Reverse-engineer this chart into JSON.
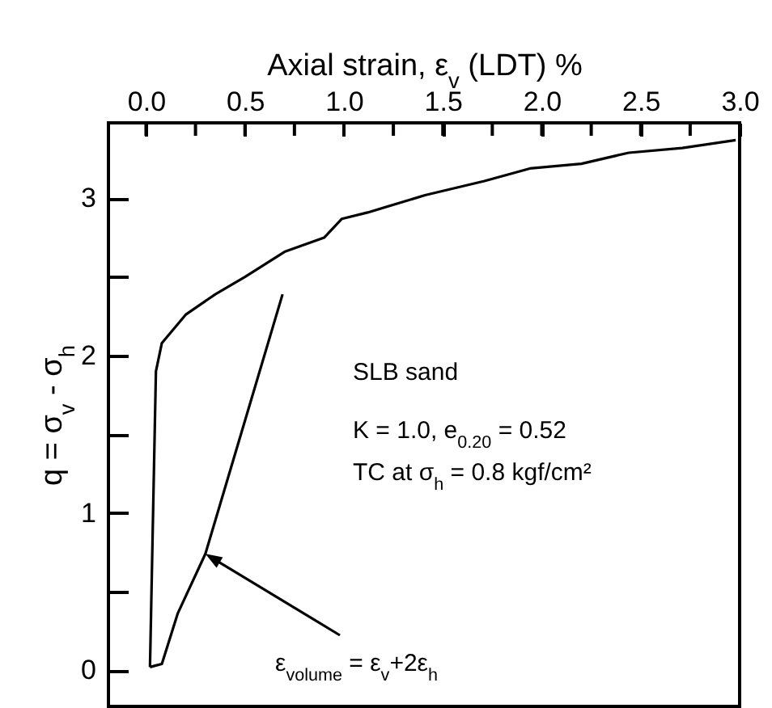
{
  "chart_data": {
    "type": "line",
    "xlabel": "Axial strain,  ε$_{v}$ (LDT) %",
    "ylabel": "q = σ$_{v}$ - σ$_{h}$",
    "series": [
      {
        "color": "#000000",
        "x": [
          0.02,
          0.05,
          0.08,
          0.2,
          0.35,
          0.5,
          0.7,
          0.9,
          0.99,
          1.12,
          1.41,
          1.71,
          1.94,
          2.2,
          2.44,
          2.71,
          2.98
        ],
        "values": [
          0.02,
          1.9,
          2.08,
          2.26,
          2.39,
          2.5,
          2.66,
          2.75,
          2.87,
          2.91,
          3.02,
          3.11,
          3.19,
          3.22,
          3.29,
          3.32,
          3.37
        ]
      },
      {
        "color": "#000000",
        "x": [
          0.02,
          0.05,
          0.08,
          0.16,
          0.3,
          0.69
        ],
        "values": [
          0.02,
          0.03,
          0.04,
          0.36,
          0.74,
          2.39
        ]
      }
    ],
    "xlim": [
      -0.19,
      3.0
    ],
    "xticks": [
      {
        "value": 0,
        "label": "0.0"
      },
      {
        "value": 0.25,
        "label": null
      },
      {
        "value": 0.5,
        "label": "0.5"
      },
      {
        "value": 0.75,
        "label": null
      },
      {
        "value": 1,
        "label": "1.0"
      },
      {
        "value": 1.25,
        "label": null
      },
      {
        "value": 1.5,
        "label": "1.5"
      },
      {
        "value": 1.75,
        "label": null
      },
      {
        "value": 2,
        "label": "2.0"
      },
      {
        "value": 2.25,
        "label": null
      },
      {
        "value": 2.5,
        "label": "2.5"
      },
      {
        "value": 2.75,
        "label": null
      },
      {
        "value": 3,
        "label": "3.0"
      }
    ],
    "ylim": [
      -0.23,
      3.48
    ],
    "yticks": [
      0,
      {
        "value": 0.5,
        "label": null
      },
      1,
      {
        "value": 1.5,
        "label": null
      },
      2,
      {
        "value": 2.5,
        "label": null
      },
      3
    ],
    "grid": false,
    "annotations": [
      "SLB sand",
      "K = 1.0,  e$_{0.20}$ = 0.52",
      "TC at  σ$_{h}$ = 0.8 kgf/cm²",
      {
        "text": "ε$_{volume}$ = ε$_{v}$+2ε$_{h}$",
        "x": 0.3,
        "y": 0.74
      }
    ]
  }
}
